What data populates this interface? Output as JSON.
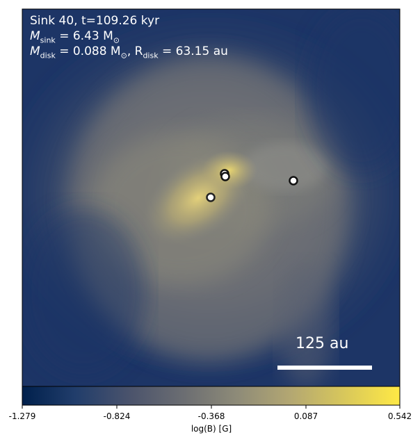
{
  "panel": {
    "title_line": "Sink 40, t=109.26 kyr",
    "msink_prefix": "M",
    "msink_sub": "sink",
    "msink_value": " = 6.43 M",
    "msink_unit_symbol": "⊙",
    "mdisk_prefix": "M",
    "mdisk_sub": "disk",
    "mdisk_value": " = 0.088 M",
    "mdisk_unit_symbol": "⊙",
    "rdisk_prefix": ", R",
    "rdisk_sub": "disk",
    "rdisk_value": " = 63.15 au",
    "scalebar_label": "125 au"
  },
  "colorbar": {
    "label": "log(B) [G]",
    "ticks": [
      "-1.279",
      "-0.824",
      "-0.368",
      "0.087",
      "0.542"
    ],
    "min": -1.279,
    "max": 0.542,
    "colormap": [
      "#00204c",
      "#213d6b",
      "#4c546c",
      "#6c6e72",
      "#8e8b78",
      "#b3a772",
      "#dac95a",
      "#ffe945"
    ]
  },
  "sinks": {
    "count": 4,
    "marker_fill": "#ffffff",
    "marker_edge": "#111111"
  },
  "colors": {
    "background_blue": "#1d3566",
    "mid_gray": "#7a7a78",
    "highlight_yellow": "#d8c96a"
  }
}
